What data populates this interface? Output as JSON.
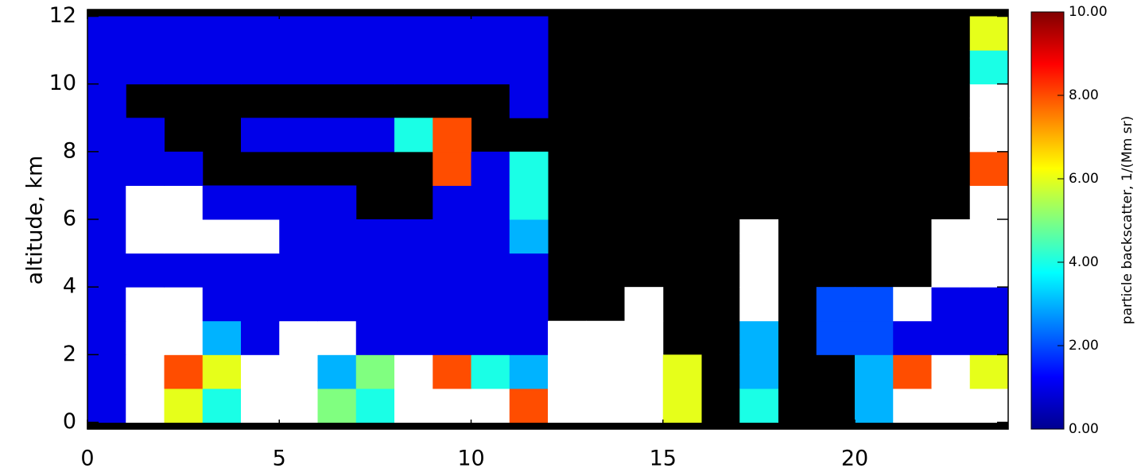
{
  "chart_data": {
    "type": "heatmap",
    "ylabel": "altitude, km",
    "colorbar_label": "particle backscatter, 1/(Mm sr)",
    "xlim": [
      0,
      24
    ],
    "xticks": [
      0,
      5,
      10,
      15,
      20
    ],
    "ylim": [
      -0.2,
      12.2
    ],
    "yticks": [
      0,
      2,
      4,
      6,
      8,
      10,
      12
    ],
    "xbins": [
      0,
      1,
      2,
      3,
      4,
      5,
      6,
      7,
      8,
      9,
      10,
      11,
      12,
      13,
      14,
      15,
      16,
      17,
      18,
      19,
      20,
      21,
      22,
      23,
      24
    ],
    "ybins": [
      0,
      1,
      2,
      3,
      4,
      5,
      6,
      7,
      8,
      9,
      10,
      11,
      12
    ],
    "z": [
      [
        1,
        12,
        6,
        4,
        12,
        12,
        5,
        4,
        12,
        12,
        12,
        8,
        12,
        12,
        12,
        6,
        null,
        4,
        null,
        null,
        3,
        12,
        12,
        12
      ],
      [
        1,
        12,
        8,
        6,
        12,
        12,
        3,
        5,
        12,
        8,
        4,
        3,
        12,
        12,
        12,
        6,
        null,
        3,
        null,
        null,
        3,
        8,
        12,
        6
      ],
      [
        1,
        12,
        12,
        3,
        1,
        12,
        12,
        1,
        1,
        1,
        1,
        1,
        12,
        12,
        12,
        null,
        null,
        3,
        null,
        2,
        2,
        1,
        1,
        1
      ],
      [
        1,
        12,
        12,
        1,
        1,
        1,
        1,
        1,
        1,
        1,
        1,
        1,
        null,
        null,
        12,
        null,
        null,
        12,
        null,
        2,
        2,
        12,
        1,
        1
      ],
      [
        1,
        1,
        1,
        1,
        1,
        1,
        1,
        1,
        1,
        1,
        1,
        1,
        null,
        null,
        null,
        null,
        null,
        12,
        null,
        null,
        null,
        null,
        12,
        12
      ],
      [
        1,
        12,
        12,
        12,
        12,
        1,
        1,
        1,
        1,
        1,
        1,
        3,
        null,
        null,
        null,
        null,
        null,
        12,
        null,
        null,
        null,
        null,
        12,
        12
      ],
      [
        1,
        12,
        12,
        1,
        1,
        1,
        1,
        null,
        null,
        1,
        1,
        4,
        null,
        null,
        null,
        null,
        null,
        null,
        null,
        null,
        null,
        null,
        null,
        12
      ],
      [
        1,
        1,
        1,
        null,
        null,
        null,
        null,
        null,
        null,
        8,
        1,
        4,
        null,
        null,
        null,
        null,
        null,
        null,
        null,
        null,
        null,
        null,
        null,
        8
      ],
      [
        1,
        1,
        null,
        null,
        1,
        1,
        1,
        1,
        4,
        8,
        null,
        null,
        null,
        null,
        null,
        null,
        null,
        null,
        null,
        null,
        null,
        null,
        null,
        12
      ],
      [
        1,
        null,
        null,
        null,
        null,
        null,
        null,
        null,
        null,
        null,
        null,
        1,
        null,
        null,
        null,
        null,
        null,
        null,
        null,
        null,
        null,
        null,
        null,
        12
      ],
      [
        1,
        1,
        1,
        1,
        1,
        1,
        1,
        1,
        1,
        1,
        1,
        1,
        null,
        null,
        null,
        null,
        null,
        null,
        null,
        null,
        null,
        null,
        null,
        4
      ],
      [
        1,
        1,
        1,
        1,
        1,
        1,
        1,
        1,
        1,
        1,
        1,
        1,
        null,
        null,
        null,
        null,
        null,
        null,
        null,
        null,
        null,
        null,
        null,
        6
      ]
    ],
    "colormap": [
      "#00008f",
      "#0000ff",
      "#0080ff",
      "#00ffff",
      "#80ff80",
      "#ffff00",
      "#ff8000",
      "#ff0000",
      "#800000"
    ],
    "over_color": "#ffffff",
    "missing_color": "#000000",
    "clim": [
      0,
      10
    ],
    "cticks": [
      {
        "value": 0,
        "label": "0.00"
      },
      {
        "value": 2,
        "label": "2.00"
      },
      {
        "value": 4,
        "label": "4.00"
      },
      {
        "value": 6,
        "label": "6.00"
      },
      {
        "value": 8,
        "label": "8.00"
      },
      {
        "value": 10,
        "label": "10.00"
      }
    ]
  }
}
